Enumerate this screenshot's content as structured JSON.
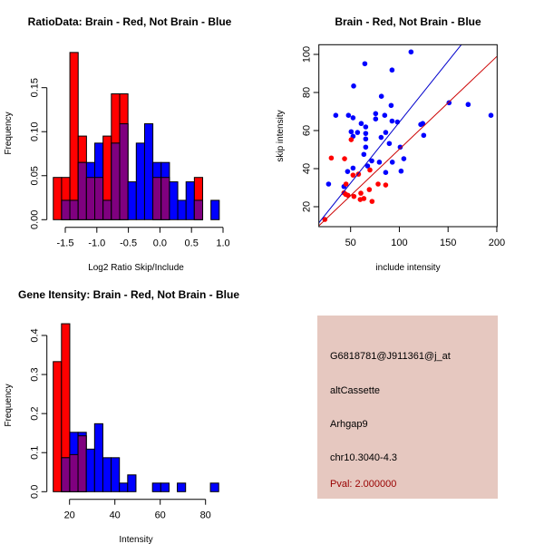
{
  "chart_data": [
    {
      "type": "histogram",
      "title": "RatioData: Brain - Red, Not Brain - Blue",
      "xlabel": "Log2 Ratio Skip/Include",
      "ylabel": "Frequency",
      "bin_start": -1.69,
      "bin_width": 0.1315,
      "xticks": [
        "-1.5",
        "-1.0",
        "-0.5",
        "0.0",
        "0.5",
        "1.0"
      ],
      "xtick_values": [
        -1.5,
        -1.0,
        -0.5,
        0.0,
        0.5,
        1.0
      ],
      "yticks": [
        "0.00",
        "0.05",
        "0.10",
        "0.15"
      ],
      "ytick_values": [
        0,
        0.05,
        0.1,
        0.15
      ],
      "series": [
        {
          "name": "Brain",
          "color": "#ff0000",
          "values": [
            0.048,
            0.048,
            0.19,
            0.095,
            0.048,
            0.048,
            0.095,
            0.143,
            0.143,
            0,
            0,
            0,
            0.048,
            0.048,
            0,
            0,
            0,
            0.048,
            0,
            0
          ]
        },
        {
          "name": "Not Brain",
          "color": "#0000ff",
          "values": [
            0,
            0.022,
            0.022,
            0.065,
            0.065,
            0.087,
            0.022,
            0.087,
            0.109,
            0.043,
            0.087,
            0.109,
            0.065,
            0.065,
            0.043,
            0.022,
            0.043,
            0.022,
            0,
            0.022
          ]
        }
      ],
      "overlap_color": "#7f007f"
    },
    {
      "type": "scatter",
      "title": "Brain - Red, Not Brain - Blue",
      "xlabel": "include intensity",
      "ylabel": "skip intensity",
      "xlim": [
        17.4,
        200
      ],
      "ylim": [
        9.7,
        105
      ],
      "xticks": [
        "50",
        "100",
        "150",
        "200"
      ],
      "xtick_values": [
        50,
        100,
        150,
        200
      ],
      "yticks": [
        "20",
        "40",
        "60",
        "80",
        "100"
      ],
      "ytick_values": [
        20,
        40,
        60,
        80,
        100
      ],
      "series": [
        {
          "name": "Not Brain",
          "color": "#0000ff",
          "points": [
            [
              27.4,
              31.9
            ],
            [
              34.8,
              68
            ],
            [
              47.8,
              68
            ],
            [
              52.5,
              66.7
            ],
            [
              53.1,
              83.4
            ],
            [
              50.6,
              59.4
            ],
            [
              52.5,
              57
            ],
            [
              57.1,
              59
            ],
            [
              60.9,
              63.7
            ],
            [
              65.5,
              61.9
            ],
            [
              65.5,
              58.5
            ],
            [
              65.5,
              55.6
            ],
            [
              65.5,
              51.3
            ],
            [
              63.6,
              47.5
            ],
            [
              64.6,
              95.1
            ],
            [
              46.9,
              38.5
            ],
            [
              52.5,
              40.3
            ],
            [
              43.2,
              30.6
            ],
            [
              67.4,
              41.4
            ],
            [
              71.7,
              44.1
            ],
            [
              75.7,
              68.9
            ],
            [
              75.7,
              66.1
            ],
            [
              79.5,
              43.4
            ],
            [
              81.3,
              56.4
            ],
            [
              81.6,
              78
            ],
            [
              85,
              68
            ],
            [
              86,
              59
            ],
            [
              86,
              38
            ],
            [
              89.7,
              53.2
            ],
            [
              91.6,
              73.2
            ],
            [
              92.5,
              65
            ],
            [
              92.5,
              91.8
            ],
            [
              92.8,
              43.4
            ],
            [
              98,
              64.5
            ],
            [
              100.9,
              51.3
            ],
            [
              101.8,
              38.7
            ],
            [
              104.6,
              45.2
            ],
            [
              112,
              101.3
            ],
            [
              122,
              63.2
            ],
            [
              124,
              63.7
            ],
            [
              125,
              57.5
            ],
            [
              151,
              74.6
            ],
            [
              170.6,
              73.7
            ],
            [
              194,
              68
            ]
          ]
        },
        {
          "name": "Brain",
          "color": "#ff0000",
          "points": [
            [
              23.6,
              13.3
            ],
            [
              30.2,
              45.6
            ],
            [
              43.8,
              45.2
            ],
            [
              45.3,
              31.9
            ],
            [
              43.2,
              27.3
            ],
            [
              45,
              26.5
            ],
            [
              47.2,
              26
            ],
            [
              50.6,
              55.2
            ],
            [
              52.5,
              36.6
            ],
            [
              58.1,
              37.1
            ],
            [
              53.4,
              25.4
            ],
            [
              60.5,
              27.1
            ],
            [
              59.9,
              23.8
            ],
            [
              63.6,
              24.3
            ],
            [
              69.2,
              29
            ],
            [
              69.8,
              39.3
            ],
            [
              72,
              22.8
            ],
            [
              78.2,
              31.9
            ],
            [
              86,
              31.4
            ]
          ]
        }
      ],
      "fit_lines": [
        {
          "name": "Not Brain fit",
          "color": "#0000cc",
          "slope": 0.64,
          "intercept": 0.4
        },
        {
          "name": "Brain fit",
          "color": "#cc0000",
          "slope": 0.487,
          "intercept": 1.5
        }
      ]
    },
    {
      "type": "histogram",
      "title": "Gene Itensity: Brain - Red, Not Brain - Blue",
      "xlabel": "Intensity",
      "ylabel": "Frequency",
      "bin_start": 12.8,
      "bin_width": 3.65,
      "xticks": [
        "20",
        "40",
        "60",
        "80"
      ],
      "xtick_values": [
        20,
        40,
        60,
        80
      ],
      "yticks": [
        "0.0",
        "0.1",
        "0.2",
        "0.3",
        "0.4"
      ],
      "ytick_values": [
        0,
        0.1,
        0.2,
        0.3,
        0.4
      ],
      "series": [
        {
          "name": "Brain",
          "color": "#ff0000",
          "values": [
            0.333,
            0.43,
            0.095,
            0.143,
            0,
            0,
            0,
            0,
            0,
            0,
            0,
            0,
            0,
            0,
            0,
            0,
            0,
            0,
            0,
            0
          ]
        },
        {
          "name": "Not Brain",
          "color": "#0000ff",
          "values": [
            0,
            0.087,
            0.152,
            0.152,
            0.109,
            0.174,
            0.087,
            0.087,
            0.022,
            0.043,
            0,
            0,
            0.022,
            0.022,
            0,
            0.022,
            0,
            0,
            0,
            0.022
          ]
        }
      ],
      "overlap_color": "#7f007f"
    }
  ],
  "info_panel": {
    "background": "#e6c8c0",
    "probe_id": "G6818781@J911361@j_at",
    "event_type": "altCassette",
    "gene": "Arhgap9",
    "location": "chr10.3040-4.3",
    "pval": "Pval: 2.000000",
    "pval_color": "#990000"
  }
}
